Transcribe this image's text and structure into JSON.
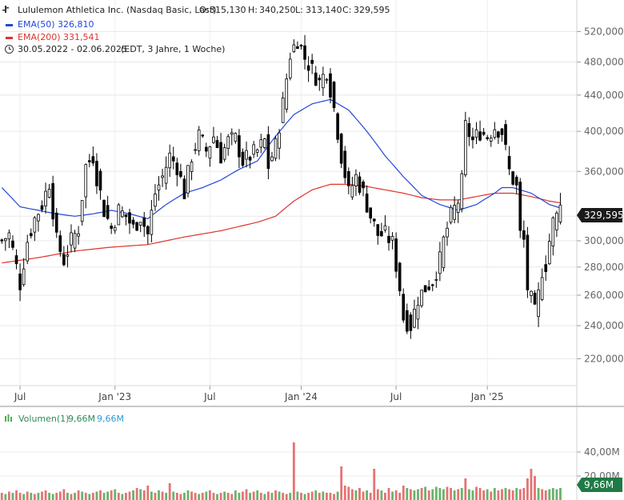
{
  "legend": {
    "title": "Lululemon Athletica Inc. (Nasdaq Basic, Last)",
    "o_label": "O:",
    "o": "315,130",
    "h_label": "H:",
    "h": "340,250",
    "l_label": "L:",
    "l": "313,140",
    "c_label": "C:",
    "c": "329,595",
    "ema50_label": "EMA(50)",
    "ema50_value": "326,810",
    "ema200_label": "EMA(200)",
    "ema200_value": "331,541",
    "range": "30.05.2022 - 02.06.2025",
    "range_info": "(EDT, 3 Jahre, 1 Woche)"
  },
  "volume_legend": {
    "label": "Volumen(1)",
    "v1": "9,66M",
    "v2": "9,66M"
  },
  "price_badge": "329,595",
  "volume_badge": "9,66M",
  "colors": {
    "up": "#ffffff",
    "down": "#000000",
    "candle_outline": "#000000",
    "ema50": "#2347d8",
    "ema200": "#e0332c",
    "vol_up": "#6ab36a",
    "vol_down": "#e57373",
    "badge": "#1a1a1a",
    "volume_badge": "#1f7a45",
    "grid": "#e8e8e8"
  },
  "chart_data": {
    "type": "candlestick",
    "price_axis": {
      "ticks": [
        220,
        240,
        260,
        280,
        300,
        320,
        360,
        400,
        440,
        480,
        520
      ],
      "tick_labels": [
        "220,000",
        "240,000",
        "260,000",
        "280,000",
        "300,000",
        "320,000",
        "360,000",
        "400,000",
        "440,000",
        "480,000",
        "520,000"
      ],
      "scale": "log",
      "range": [
        205,
        565
      ]
    },
    "time_axis": {
      "labels": [
        "Jul",
        "Jan '23",
        "Jul",
        "Jan '24",
        "Jul",
        "Jan '25"
      ],
      "label_weeks": [
        5,
        31,
        57,
        82,
        108,
        133
      ]
    },
    "weeks_total": 158,
    "last_candle": {
      "open": 315.13,
      "high": 340.25,
      "low": 313.14,
      "close": 329.595
    },
    "anchors": [
      [
        0,
        300
      ],
      [
        2,
        305
      ],
      [
        4,
        280
      ],
      [
        5,
        268
      ],
      [
        7,
        300
      ],
      [
        9,
        318
      ],
      [
        11,
        330
      ],
      [
        13,
        350
      ],
      [
        15,
        300
      ],
      [
        17,
        285
      ],
      [
        19,
        300
      ],
      [
        21,
        310
      ],
      [
        23,
        365
      ],
      [
        25,
        375
      ],
      [
        26,
        355
      ],
      [
        28,
        325
      ],
      [
        30,
        310
      ],
      [
        32,
        325
      ],
      [
        34,
        320
      ],
      [
        36,
        310
      ],
      [
        38,
        320
      ],
      [
        40,
        305
      ],
      [
        42,
        340
      ],
      [
        44,
        355
      ],
      [
        46,
        375
      ],
      [
        48,
        365
      ],
      [
        50,
        340
      ],
      [
        52,
        375
      ],
      [
        54,
        395
      ],
      [
        56,
        380
      ],
      [
        58,
        395
      ],
      [
        60,
        375
      ],
      [
        62,
        390
      ],
      [
        64,
        392
      ],
      [
        66,
        370
      ],
      [
        68,
        375
      ],
      [
        70,
        380
      ],
      [
        72,
        390
      ],
      [
        73,
        365
      ],
      [
        75,
        385
      ],
      [
        77,
        430
      ],
      [
        79,
        490
      ],
      [
        80,
        500
      ],
      [
        81,
        510
      ],
      [
        83,
        485
      ],
      [
        85,
        470
      ],
      [
        87,
        455
      ],
      [
        89,
        470
      ],
      [
        91,
        425
      ],
      [
        93,
        375
      ],
      [
        95,
        340
      ],
      [
        97,
        355
      ],
      [
        99,
        340
      ],
      [
        101,
        320
      ],
      [
        103,
        305
      ],
      [
        105,
        305
      ],
      [
        107,
        298
      ],
      [
        109,
        265
      ],
      [
        110,
        245
      ],
      [
        112,
        240
      ],
      [
        114,
        258
      ],
      [
        116,
        265
      ],
      [
        118,
        270
      ],
      [
        120,
        285
      ],
      [
        121,
        300
      ],
      [
        123,
        320
      ],
      [
        125,
        333
      ],
      [
        126,
        350
      ],
      [
        127,
        405
      ],
      [
        129,
        390
      ],
      [
        131,
        400
      ],
      [
        133,
        395
      ],
      [
        135,
        405
      ],
      [
        137,
        400
      ],
      [
        139,
        360
      ],
      [
        141,
        345
      ],
      [
        142,
        305
      ],
      [
        143,
        300
      ],
      [
        144,
        265
      ],
      [
        146,
        248
      ],
      [
        147,
        260
      ],
      [
        148,
        278
      ],
      [
        149,
        282
      ],
      [
        150,
        300
      ],
      [
        151,
        315
      ],
      [
        152,
        320
      ],
      [
        153,
        329.595
      ]
    ],
    "ema50_anchors": [
      [
        0,
        345
      ],
      [
        5,
        328
      ],
      [
        10,
        325
      ],
      [
        15,
        322
      ],
      [
        20,
        320
      ],
      [
        25,
        322
      ],
      [
        30,
        325
      ],
      [
        35,
        322
      ],
      [
        40,
        318
      ],
      [
        45,
        330
      ],
      [
        50,
        340
      ],
      [
        55,
        345
      ],
      [
        60,
        352
      ],
      [
        65,
        362
      ],
      [
        70,
        370
      ],
      [
        75,
        395
      ],
      [
        80,
        418
      ],
      [
        85,
        430
      ],
      [
        90,
        435
      ],
      [
        95,
        423
      ],
      [
        100,
        400
      ],
      [
        105,
        375
      ],
      [
        110,
        355
      ],
      [
        115,
        338
      ],
      [
        120,
        330
      ],
      [
        125,
        325
      ],
      [
        130,
        330
      ],
      [
        135,
        340
      ],
      [
        137,
        345
      ],
      [
        140,
        345
      ],
      [
        145,
        340
      ],
      [
        150,
        330
      ],
      [
        153,
        327
      ]
    ],
    "ema200_anchors": [
      [
        0,
        283
      ],
      [
        10,
        287
      ],
      [
        20,
        292
      ],
      [
        30,
        295
      ],
      [
        40,
        297
      ],
      [
        50,
        303
      ],
      [
        60,
        308
      ],
      [
        70,
        315
      ],
      [
        75,
        320
      ],
      [
        80,
        333
      ],
      [
        85,
        343
      ],
      [
        90,
        348
      ],
      [
        95,
        348
      ],
      [
        100,
        346
      ],
      [
        105,
        343
      ],
      [
        110,
        340
      ],
      [
        115,
        336
      ],
      [
        120,
        334
      ],
      [
        125,
        334
      ],
      [
        130,
        337
      ],
      [
        135,
        340
      ],
      [
        140,
        340
      ],
      [
        145,
        337
      ],
      [
        150,
        333
      ],
      [
        153,
        331.5
      ]
    ],
    "volume_axis": {
      "ticks": [
        20,
        40
      ],
      "tick_labels": [
        "20,00M",
        "40,00M"
      ],
      "range": [
        0,
        60
      ]
    },
    "volume": {
      "values_m": [
        6,
        5,
        7,
        6,
        8,
        6,
        5,
        7,
        6,
        5,
        6,
        7,
        8,
        6,
        5,
        6,
        7,
        9,
        6,
        5,
        6,
        8,
        7,
        6,
        5,
        6,
        7,
        8,
        6,
        7,
        8,
        9,
        6,
        5,
        6,
        7,
        8,
        10,
        9,
        8,
        12,
        7,
        6,
        8,
        7,
        6,
        14,
        7,
        6,
        5,
        6,
        8,
        7,
        6,
        5,
        6,
        7,
        8,
        6,
        5,
        6,
        7,
        6,
        5,
        8,
        6,
        7,
        9,
        6,
        7,
        8,
        6,
        5,
        7,
        6,
        8,
        7,
        6,
        5,
        6,
        48,
        7,
        6,
        5,
        6,
        7,
        8,
        6,
        7,
        6,
        6,
        5,
        7,
        28,
        12,
        11,
        9,
        8,
        10,
        7,
        8,
        6,
        26,
        9,
        8,
        6,
        10,
        7,
        8,
        6,
        12,
        10,
        9,
        8,
        9,
        10,
        11,
        8,
        9,
        11,
        10,
        9,
        11,
        10,
        8,
        9,
        10,
        18,
        9,
        8,
        11,
        10,
        8,
        9,
        7,
        10,
        8,
        9,
        10,
        9,
        8,
        10,
        9,
        10,
        18,
        26,
        20,
        10,
        9,
        8,
        9,
        10,
        9,
        10
      ],
      "down_flags": [
        1,
        0,
        1,
        0,
        1,
        1,
        0,
        1,
        0,
        1,
        0,
        1,
        1,
        0,
        0,
        1,
        1,
        1,
        0,
        1,
        0,
        1,
        0,
        1,
        0,
        1,
        0,
        1,
        0,
        0,
        1,
        0,
        1,
        0,
        1,
        1,
        0,
        1,
        0,
        1,
        1,
        0,
        1,
        0,
        1,
        0,
        1,
        0,
        1,
        1,
        0,
        0,
        1,
        1,
        0,
        1,
        0,
        1,
        1,
        0,
        1,
        0,
        1,
        1,
        0,
        0,
        1,
        1,
        0,
        1,
        0,
        1,
        0,
        1,
        0,
        1,
        0,
        1,
        1,
        0,
        1,
        0,
        1,
        0,
        1,
        1,
        0,
        1,
        0,
        1,
        1,
        1,
        0,
        1,
        1,
        1,
        1,
        0,
        1,
        1,
        0,
        1,
        1,
        1,
        0,
        1,
        1,
        0,
        1,
        1,
        1,
        0,
        1,
        0,
        0,
        1,
        0,
        1,
        0,
        0,
        0,
        0,
        1,
        1,
        0,
        1,
        0,
        1,
        0,
        0,
        1,
        1,
        1,
        0,
        1,
        0,
        1,
        1,
        0,
        1,
        1,
        0,
        1,
        1,
        1,
        1,
        1,
        0,
        1,
        1,
        0,
        0,
        0,
        0
      ]
    }
  }
}
